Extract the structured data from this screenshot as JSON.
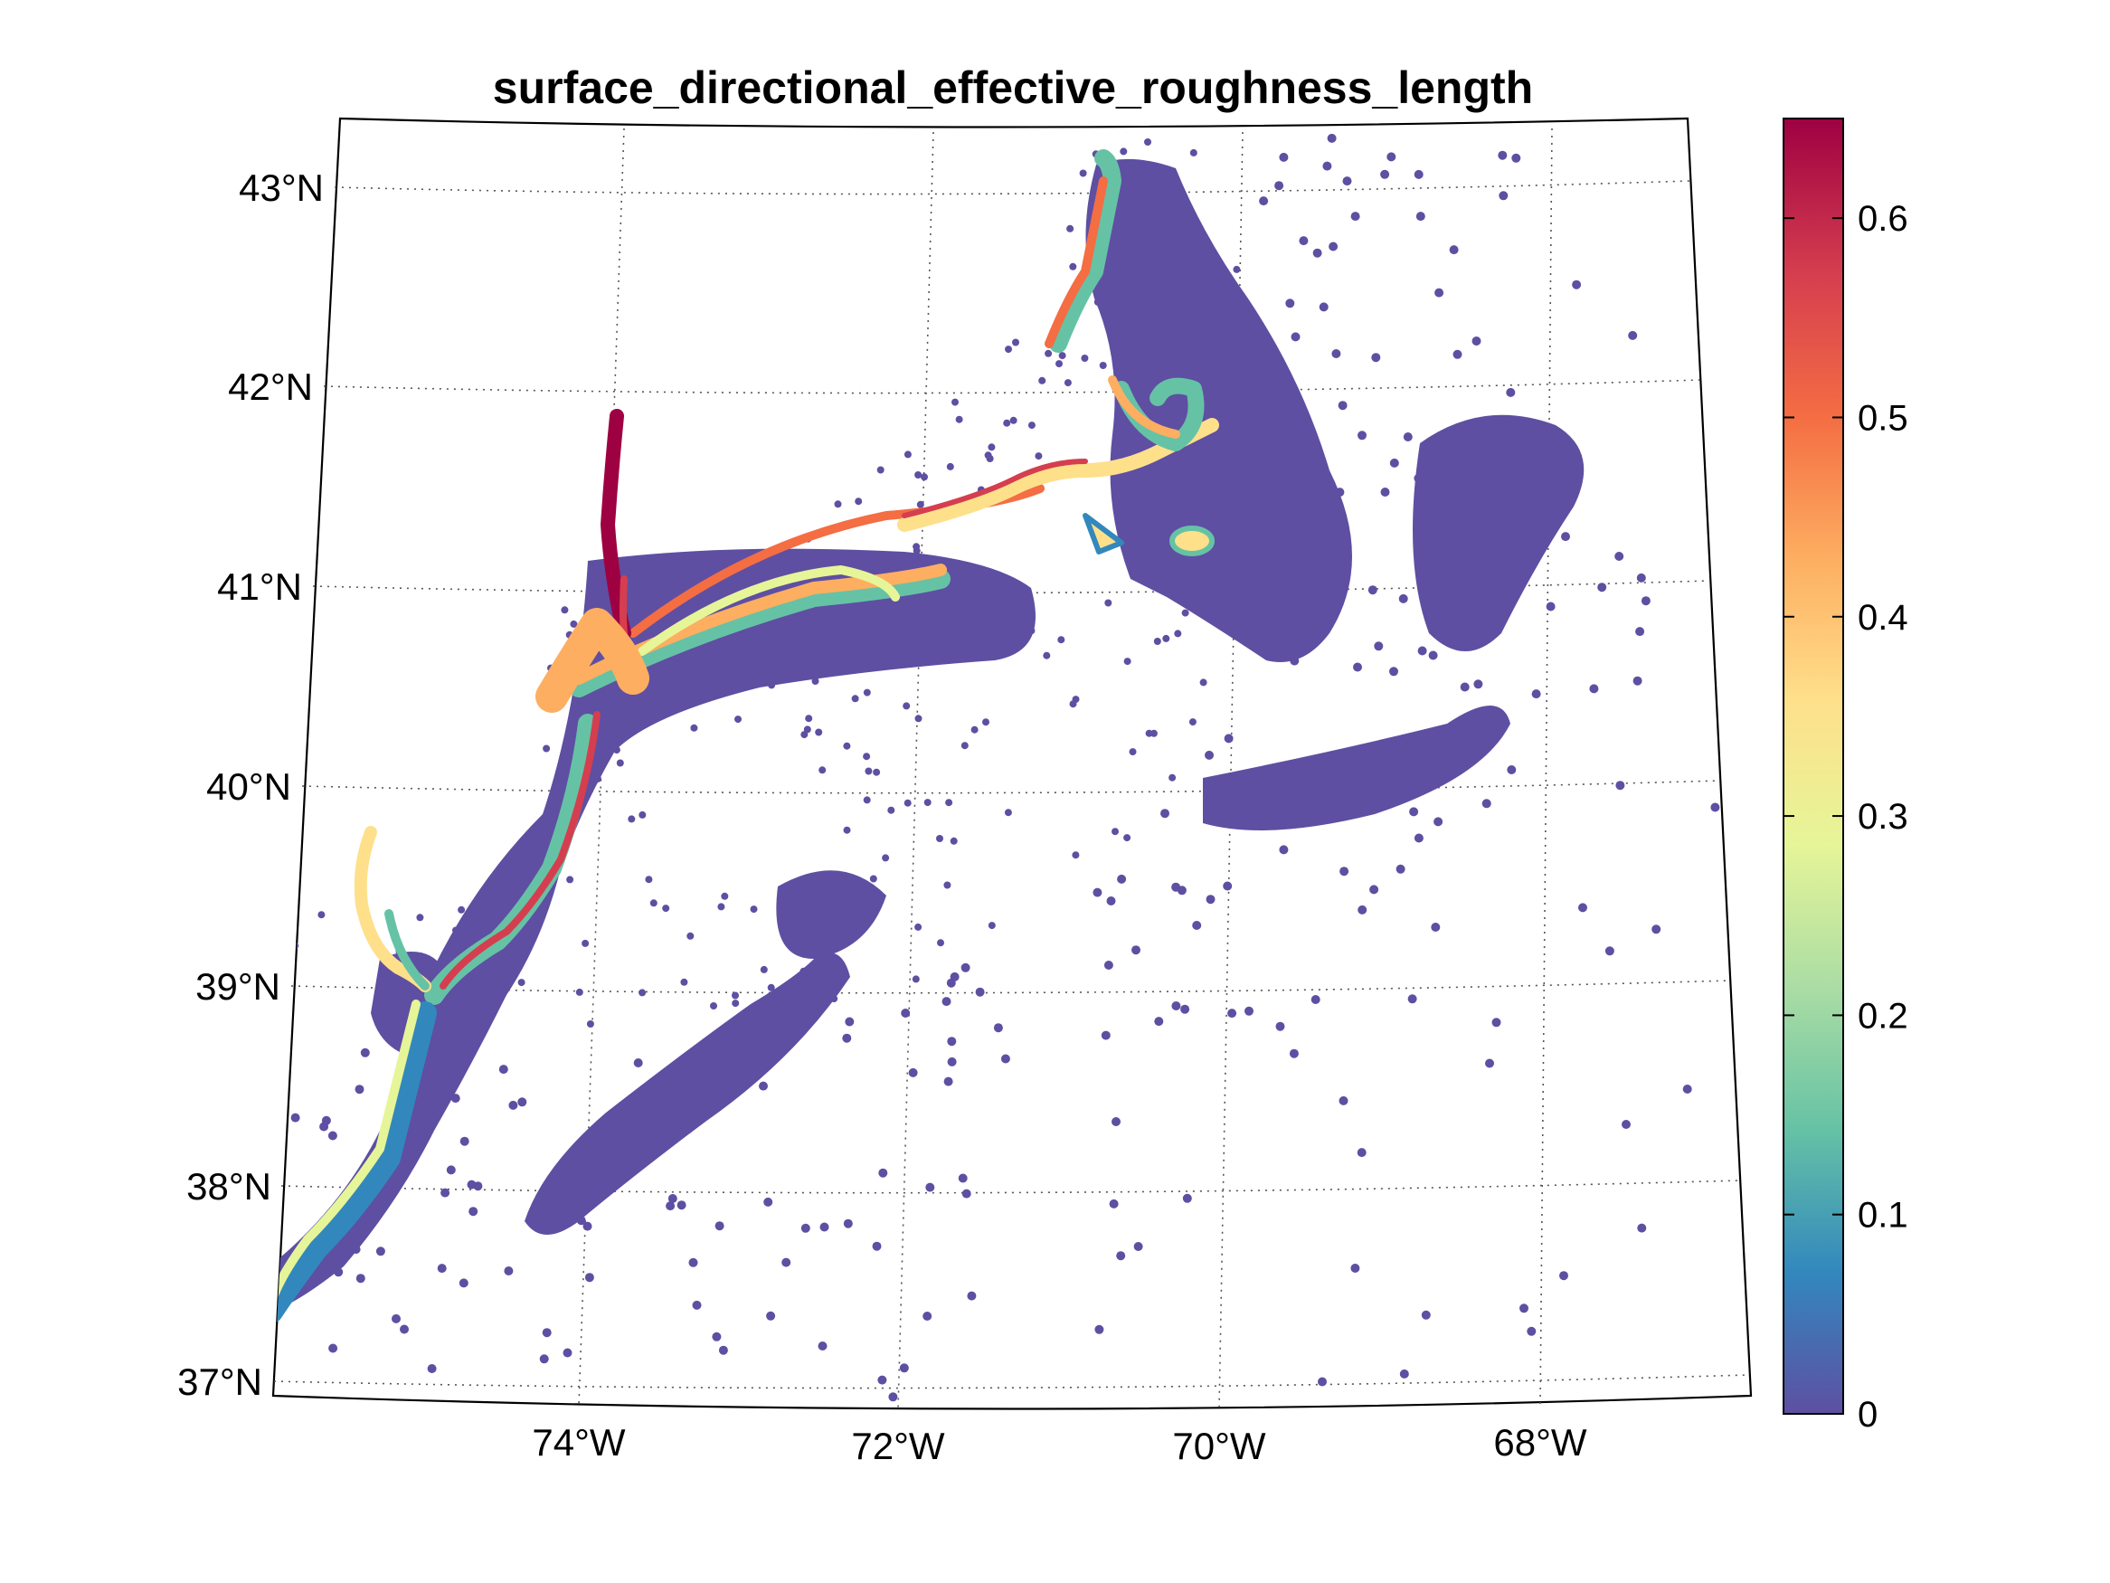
{
  "chart_data": {
    "type": "scatter",
    "title": "surface_directional_effective_roughness_length",
    "projection": "conic map projection, latitude/longitude graticule",
    "x_axis": {
      "ticks": [
        "74°W",
        "72°W",
        "70°W",
        "68°W"
      ],
      "values": [
        -74,
        -72,
        -70,
        -68
      ]
    },
    "y_axis": {
      "ticks": [
        "43°N",
        "42°N",
        "41°N",
        "40°N",
        "39°N",
        "38°N",
        "37°N"
      ],
      "values": [
        43,
        42,
        41,
        40,
        39,
        38,
        37
      ]
    },
    "extent": {
      "lon": [
        -76,
        -66.8
      ],
      "lat": [
        36.9,
        43.3
      ]
    },
    "grid": true,
    "colorbar": {
      "colormap": "spectral (reversed)",
      "range": [
        0,
        0.65
      ],
      "ticks": [
        "0",
        "0.1",
        "0.2",
        "0.3",
        "0.4",
        "0.5",
        "0.6"
      ],
      "tick_values": [
        0,
        0.1,
        0.2,
        0.3,
        0.4,
        0.5,
        0.6
      ],
      "stops": [
        "#5e4fa2",
        "#3288bd",
        "#66c2a5",
        "#abdda4",
        "#e6f598",
        "#fee08b",
        "#fdae61",
        "#f46d43",
        "#d53e4f",
        "#9e0142"
      ]
    },
    "description_values": {
      "open_ocean": 0,
      "coastal_nearshore": [
        0.1,
        0.3
      ],
      "coastline": [
        0.4,
        0.5
      ],
      "hudson_river_max": 0.65
    }
  }
}
